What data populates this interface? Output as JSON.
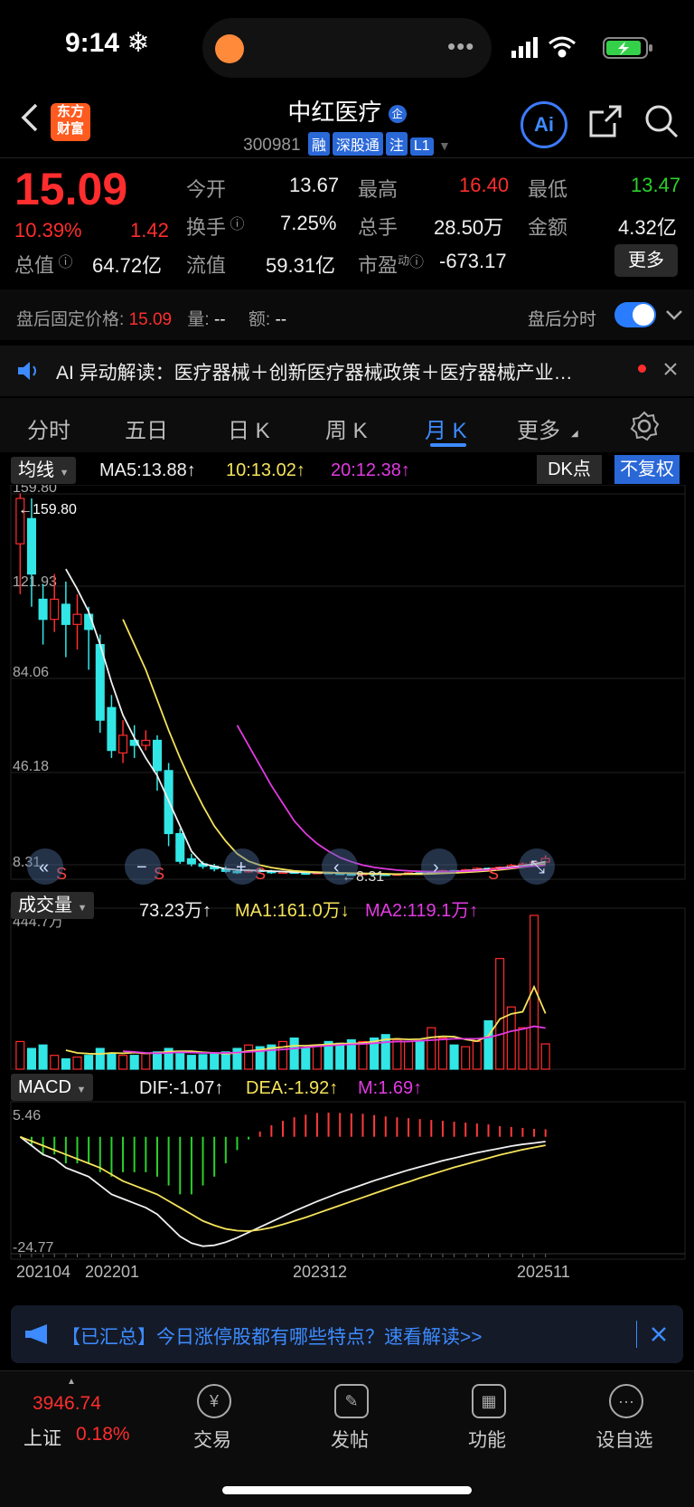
{
  "status_bar": {
    "time": "9:14 ❄",
    "island_dots": "•••"
  },
  "header": {
    "back_icon": "chevron-left-icon",
    "logo_line1": "东方",
    "logo_line2": "财富",
    "title": "中红医疗",
    "title_badge": "企",
    "code": "300981",
    "tags": [
      "融",
      "深股通",
      "注",
      "L1"
    ],
    "ai_label": "Ai"
  },
  "quote": {
    "price": "15.09",
    "change_pct": "10.39%",
    "change": "1.42",
    "open_label": "今开",
    "open": "13.67",
    "high_label": "最高",
    "high": "16.40",
    "low_label": "最低",
    "low": "13.47",
    "turnover_label": "换手",
    "turnover": "7.25%",
    "volume_label": "总手",
    "volume": "28.50万",
    "amount_label": "金额",
    "amount": "4.32亿",
    "mktcap_label": "总值",
    "mktcap": "64.72亿",
    "float_label": "流值",
    "float": "59.31亿",
    "pe_label": "市盈",
    "pe_sup": "动",
    "pe": "-673.17",
    "more_label": "更多"
  },
  "after_hours": {
    "price_label": "盘后固定价格:",
    "price": "15.09",
    "vol_label": "量:",
    "vol": "--",
    "amt_label": "额:",
    "amt": "--",
    "toggle_label": "盘后分时"
  },
  "ai_banner": {
    "text": "AI 异动解读：医疗器械＋创新医疗器械政策＋医疗器械产业…"
  },
  "tabs": [
    "分时",
    "五日",
    "日 K",
    "周 K",
    "月 K",
    "更多"
  ],
  "ma_bar": {
    "select": "均线",
    "ma5": "MA5:13.88↑",
    "ma10": "10:13.02↑",
    "ma20": "20:12.38↑",
    "dk": "DK点",
    "adjust": "不复权"
  },
  "vol_bar": {
    "select": "成交量",
    "vol": "73.23万↑",
    "ma1": "MA1:161.0万↓",
    "ma2": "MA2:119.1万↑"
  },
  "macd_bar": {
    "select": "MACD",
    "dif": "DIF:-1.07↑",
    "dea": "DEA:-1.92↑",
    "m": "M:1.69↑"
  },
  "chart_data": {
    "type": "candlestick",
    "price_axis_labels": [
      "159.80",
      "121.93",
      "84.06",
      "46.18",
      "8.31"
    ],
    "max_marker": "←159.80",
    "min_marker": "←8.31",
    "volume_max_label": "444.7万",
    "macd_max_label": "5.46",
    "macd_min_label": "-24.77",
    "x_labels": [
      "202104",
      "202201",
      "202312",
      "202511"
    ],
    "trade_marker": "S",
    "candles": [
      [
        140,
        158,
        120,
        160
      ],
      [
        150,
        128,
        115,
        158
      ],
      [
        118,
        110,
        100,
        124
      ],
      [
        110,
        118,
        105,
        128
      ],
      [
        116,
        108,
        95,
        125
      ],
      [
        108,
        112,
        98,
        120
      ],
      [
        112,
        106,
        90,
        115
      ],
      [
        100,
        70,
        65,
        104
      ],
      [
        75,
        58,
        55,
        80
      ],
      [
        57,
        64,
        53,
        70
      ],
      [
        62,
        60,
        55,
        68
      ],
      [
        60,
        62,
        58,
        66
      ],
      [
        62,
        50,
        42,
        64
      ],
      [
        50,
        25,
        20,
        53
      ],
      [
        25,
        14,
        13,
        27
      ],
      [
        15,
        13,
        12,
        17
      ],
      [
        13,
        12,
        11,
        14
      ],
      [
        12,
        11,
        10,
        13
      ],
      [
        11,
        10,
        9.5,
        12
      ],
      [
        10,
        9.8,
        9,
        11
      ],
      [
        9.8,
        10.5,
        9.5,
        11
      ],
      [
        10.5,
        10,
        9.6,
        11
      ],
      [
        10,
        9.5,
        9,
        10.6
      ],
      [
        9.5,
        9.8,
        9.2,
        10.2
      ],
      [
        9.8,
        9.4,
        9,
        10
      ],
      [
        9.4,
        9.1,
        8.8,
        9.6
      ],
      [
        9.1,
        9.6,
        9,
        10
      ],
      [
        9.6,
        9.3,
        9,
        9.8
      ],
      [
        9.3,
        9.0,
        8.7,
        9.5
      ],
      [
        9.0,
        8.8,
        8.5,
        9.2
      ],
      [
        8.8,
        9.2,
        8.6,
        9.4
      ],
      [
        9.2,
        8.9,
        8.5,
        9.4
      ],
      [
        8.9,
        8.6,
        8.31,
        9.0
      ],
      [
        8.6,
        9.0,
        8.5,
        9.3
      ],
      [
        9.0,
        9.4,
        8.9,
        9.6
      ],
      [
        9.4,
        9.1,
        8.8,
        9.5
      ],
      [
        9.1,
        9.6,
        9.0,
        9.9
      ],
      [
        9.6,
        10.3,
        9.5,
        10.6
      ],
      [
        10.3,
        10.0,
        9.6,
        10.5
      ],
      [
        10.0,
        10.6,
        9.9,
        11.0
      ],
      [
        10.6,
        11.2,
        10.4,
        11.6
      ],
      [
        11.2,
        10.8,
        10.5,
        11.5
      ],
      [
        10.8,
        11.6,
        10.7,
        12.0
      ],
      [
        11.6,
        12.4,
        11.4,
        13.0
      ],
      [
        12.4,
        12.9,
        12.0,
        13.6
      ],
      [
        12.9,
        13.67,
        12.8,
        14.2
      ],
      [
        13.67,
        15.09,
        13.47,
        16.4
      ]
    ],
    "ma5": [
      null,
      null,
      null,
      null,
      130,
      122,
      113,
      100,
      85,
      72,
      63,
      55,
      48,
      38,
      28,
      18,
      13,
      12,
      11,
      10.6,
      10.4,
      10.3,
      10.1,
      9.9,
      9.7,
      9.6,
      9.5,
      9.4,
      9.3,
      9.2,
      9.1,
      9.0,
      8.9,
      8.9,
      9.0,
      9.1,
      9.3,
      9.6,
      9.9,
      10.2,
      10.6,
      10.9,
      11.2,
      11.7,
      12.2,
      12.9,
      13.88
    ],
    "ma10": [
      null,
      null,
      null,
      null,
      null,
      null,
      null,
      null,
      null,
      110,
      100,
      90,
      78,
      66,
      55,
      45,
      36,
      28,
      22,
      17,
      14,
      12.5,
      11.5,
      10.8,
      10.2,
      9.9,
      9.7,
      9.5,
      9.4,
      9.3,
      9.2,
      9.1,
      9.0,
      8.9,
      8.9,
      8.9,
      9.0,
      9.2,
      9.4,
      9.6,
      9.9,
      10.2,
      10.6,
      11.1,
      11.7,
      12.3,
      13.02
    ],
    "ma20": [
      null,
      null,
      null,
      null,
      null,
      null,
      null,
      null,
      null,
      null,
      null,
      null,
      null,
      null,
      null,
      null,
      null,
      null,
      null,
      68,
      60,
      52,
      44,
      37,
      30,
      25,
      21,
      18,
      15.5,
      13.8,
      12.5,
      11.6,
      11.0,
      10.5,
      10.2,
      10.0,
      9.9,
      9.9,
      10.0,
      10.1,
      10.3,
      10.6,
      11.0,
      11.4,
      11.8,
      12.1,
      12.38
    ],
    "volume": [
      80,
      60,
      70,
      40,
      30,
      35,
      40,
      60,
      45,
      40,
      40,
      45,
      50,
      60,
      45,
      40,
      42,
      45,
      50,
      60,
      70,
      65,
      70,
      80,
      90,
      60,
      70,
      80,
      75,
      85,
      80,
      90,
      100,
      85,
      80,
      80,
      120,
      90,
      70,
      65,
      80,
      140,
      320,
      180,
      120,
      444.7,
      73.23
    ],
    "vol_ma1": [
      null,
      null,
      null,
      null,
      55,
      47,
      45,
      44,
      47,
      46,
      48,
      46,
      47,
      51,
      52,
      52,
      49,
      47,
      45,
      47,
      53,
      56,
      61,
      64,
      68,
      68,
      70,
      72,
      74,
      74,
      76,
      80,
      86,
      88,
      86,
      87,
      92,
      95,
      94,
      86,
      81,
      96,
      145,
      160,
      166,
      238,
      161
    ],
    "vol_ma2": [
      null,
      null,
      null,
      null,
      null,
      null,
      null,
      null,
      null,
      52,
      50,
      47,
      46,
      47,
      49,
      48,
      47,
      47,
      47,
      48,
      50,
      52,
      55,
      57,
      60,
      63,
      66,
      68,
      70,
      72,
      73,
      75,
      78,
      80,
      80,
      82,
      84,
      86,
      88,
      88,
      88,
      92,
      100,
      110,
      116,
      124,
      119.1
    ],
    "dif": [
      0,
      -2,
      -4,
      -5,
      -7,
      -8,
      -9,
      -11,
      -13,
      -14,
      -15,
      -16,
      -17.5,
      -20,
      -22.5,
      -24,
      -24.7,
      -24.5,
      -23.8,
      -22.8,
      -21.6,
      -20.4,
      -19.2,
      -18.0,
      -16.8,
      -15.7,
      -14.6,
      -13.6,
      -12.6,
      -11.7,
      -10.8,
      -9.9,
      -9.1,
      -8.3,
      -7.5,
      -6.8,
      -6.1,
      -5.4,
      -4.8,
      -4.2,
      -3.6,
      -3.1,
      -2.6,
      -2.1,
      -1.7,
      -1.4,
      -1.07
    ],
    "dea": [
      0,
      -1,
      -2,
      -3,
      -4,
      -5,
      -6,
      -7,
      -8.5,
      -10,
      -11,
      -12,
      -13,
      -14.5,
      -16,
      -17.5,
      -19,
      -20,
      -20.8,
      -21.2,
      -21.3,
      -21.0,
      -20.5,
      -19.8,
      -19.0,
      -18.2,
      -17.3,
      -16.4,
      -15.5,
      -14.6,
      -13.7,
      -12.8,
      -11.9,
      -11.0,
      -10.2,
      -9.3,
      -8.5,
      -7.7,
      -6.9,
      -6.2,
      -5.5,
      -4.8,
      -4.1,
      -3.5,
      -2.9,
      -2.4,
      -1.92
    ],
    "macd_m": [
      0,
      -2,
      -4,
      -4,
      -6,
      -6,
      -6,
      -8,
      -9,
      -8,
      -8,
      -8,
      -9,
      -11,
      -13,
      -13,
      -11,
      -9,
      -6,
      -3,
      -0.6,
      1.2,
      2.6,
      3.6,
      4.4,
      5.0,
      5.4,
      5.46,
      5.4,
      5.3,
      5.2,
      4.9,
      4.6,
      4.4,
      4.2,
      4.0,
      3.8,
      3.6,
      3.4,
      3.2,
      3.0,
      2.8,
      2.4,
      2.2,
      2.0,
      1.8,
      1.69
    ]
  },
  "news": {
    "text": "【已汇总】今日涨停股都有哪些特点？速看解读>>"
  },
  "bottom_nav": {
    "index_value": "3946.74",
    "index_name": "上证",
    "index_change": "0.18%",
    "items": [
      "交易",
      "发帖",
      "功能",
      "设自选"
    ]
  }
}
